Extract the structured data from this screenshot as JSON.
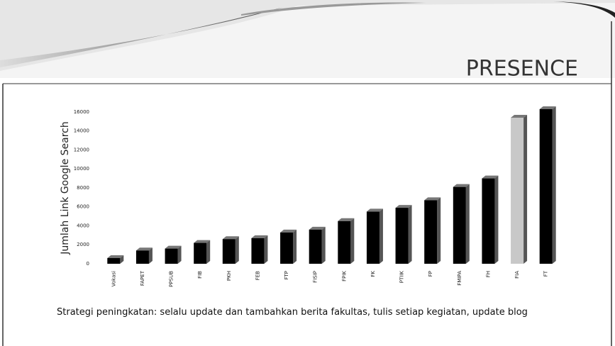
{
  "title": "PRESENCE",
  "note": "Strategi peningkatan: selalu update dan tambahkan berita fakultas,  tulis setiap kegiatan, update blog",
  "chart_data": {
    "type": "bar",
    "ylabel": "Jumlah Link Google Search",
    "categories": [
      "Vokasi",
      "FAPET",
      "PPSUB",
      "FIB",
      "PKH",
      "FEB",
      "FTP",
      "FISIP",
      "FPIK",
      "FK",
      "PTIIK",
      "FP",
      "FMIPA",
      "FH",
      "FIA",
      "FT"
    ],
    "values": [
      600,
      1400,
      1600,
      2200,
      2600,
      2700,
      3300,
      3600,
      4500,
      5500,
      5900,
      6700,
      8100,
      9000,
      15400,
      16300
    ],
    "colors": [
      "#000000",
      "#000000",
      "#000000",
      "#000000",
      "#000000",
      "#000000",
      "#000000",
      "#000000",
      "#000000",
      "#000000",
      "#000000",
      "#000000",
      "#000000",
      "#000000",
      "#c8c8c8",
      "#000000"
    ],
    "ylim": [
      0,
      17000
    ],
    "yticks": [
      0,
      2000,
      4000,
      6000,
      8000,
      10000,
      12000,
      14000,
      16000
    ],
    "grid": false
  }
}
